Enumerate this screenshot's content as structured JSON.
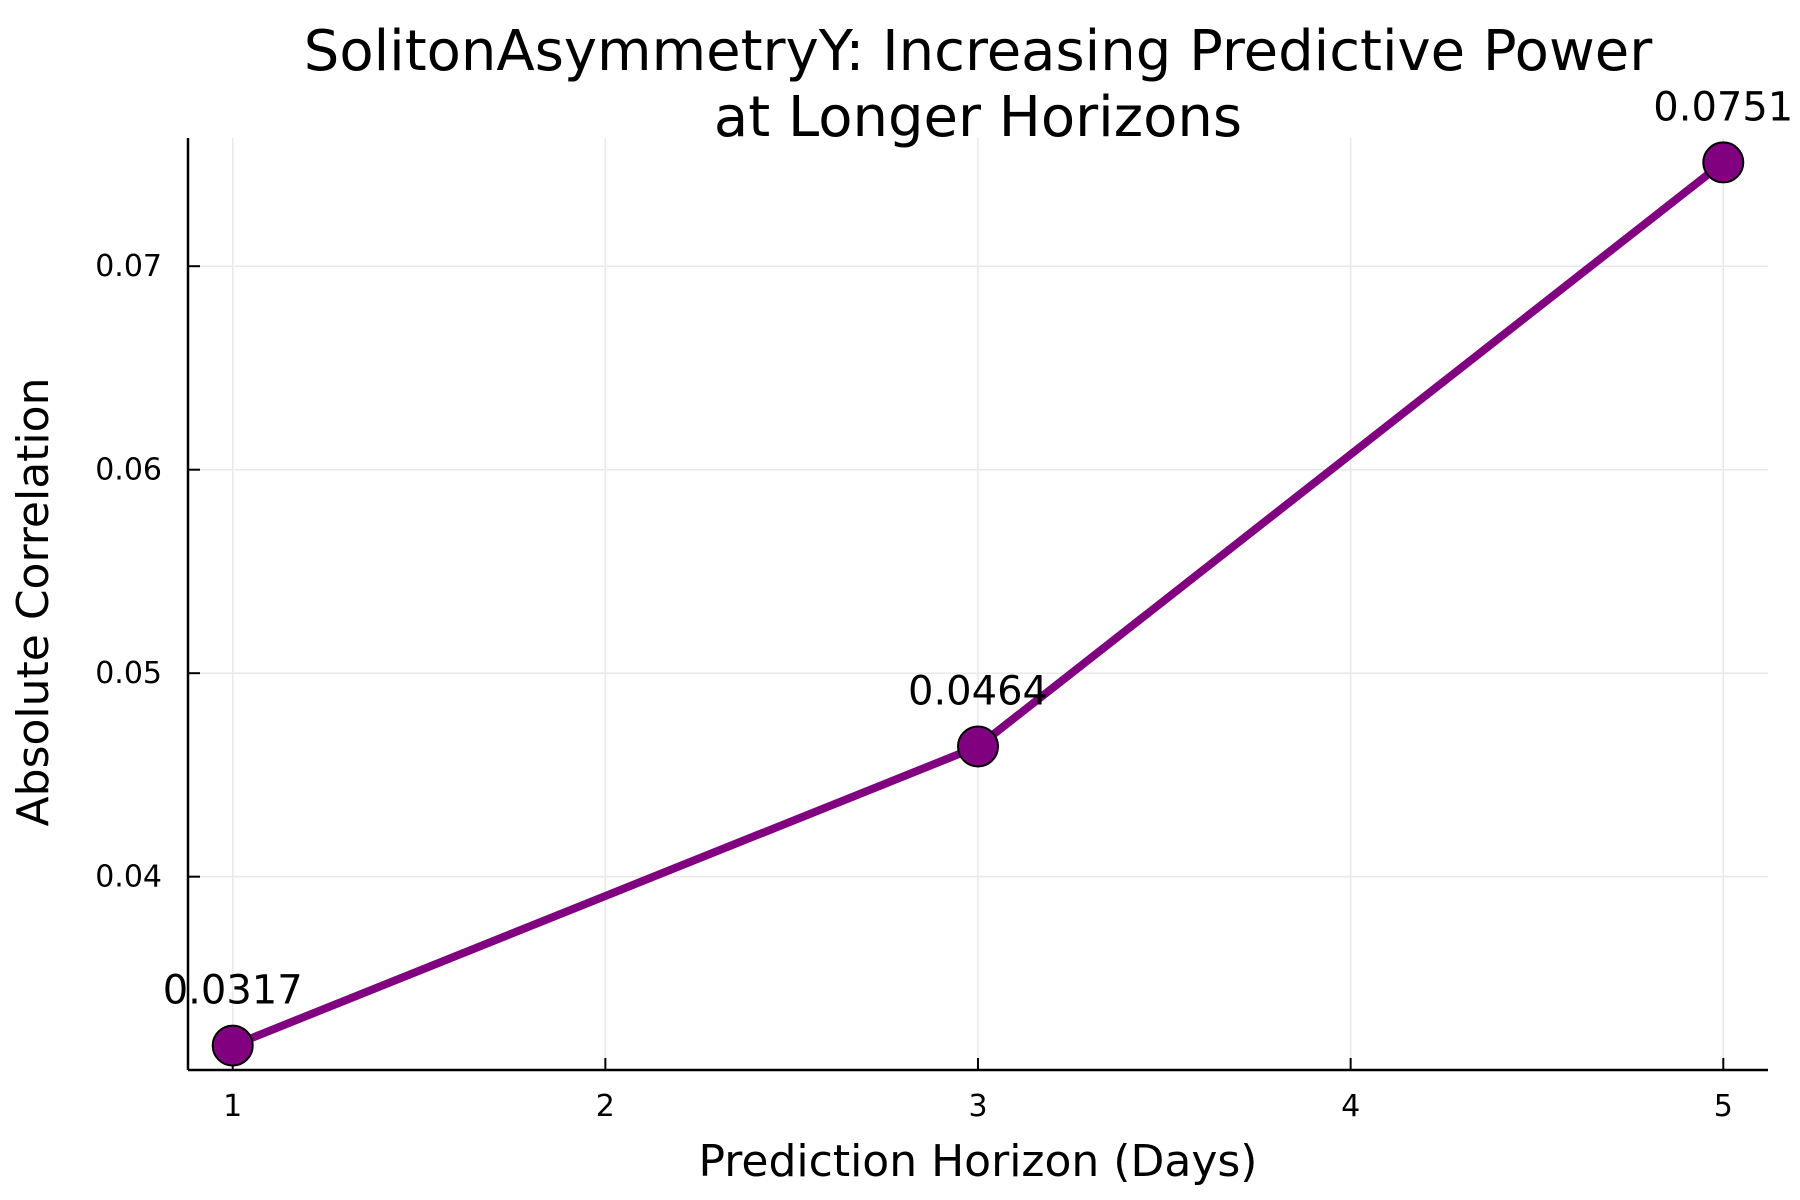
{
  "chart_data": {
    "type": "line",
    "title": [
      "SolitonAsymmetryY: Increasing Predictive Power",
      "at Longer Horizons"
    ],
    "xlabel": "Prediction Horizon (Days)",
    "ylabel": "Absolute Correlation",
    "x": [
      1,
      3,
      5
    ],
    "series": [
      {
        "values": [
          0.0317,
          0.0464,
          0.0751
        ],
        "data_labels": [
          "0.0317",
          "0.0464",
          "0.0751"
        ],
        "color": "#800080"
      }
    ],
    "x_ticks": [
      1,
      2,
      3,
      4,
      5
    ],
    "x_tick_labels": [
      "1",
      "2",
      "3",
      "4",
      "5"
    ],
    "y_ticks": [
      0.04,
      0.05,
      0.06,
      0.07
    ],
    "y_tick_labels": [
      "0.04",
      "0.05",
      "0.06",
      "0.07"
    ],
    "xlim": [
      0.88,
      5.12
    ],
    "ylim": [
      0.0305,
      0.0763
    ],
    "grid": true,
    "legend": "none"
  }
}
